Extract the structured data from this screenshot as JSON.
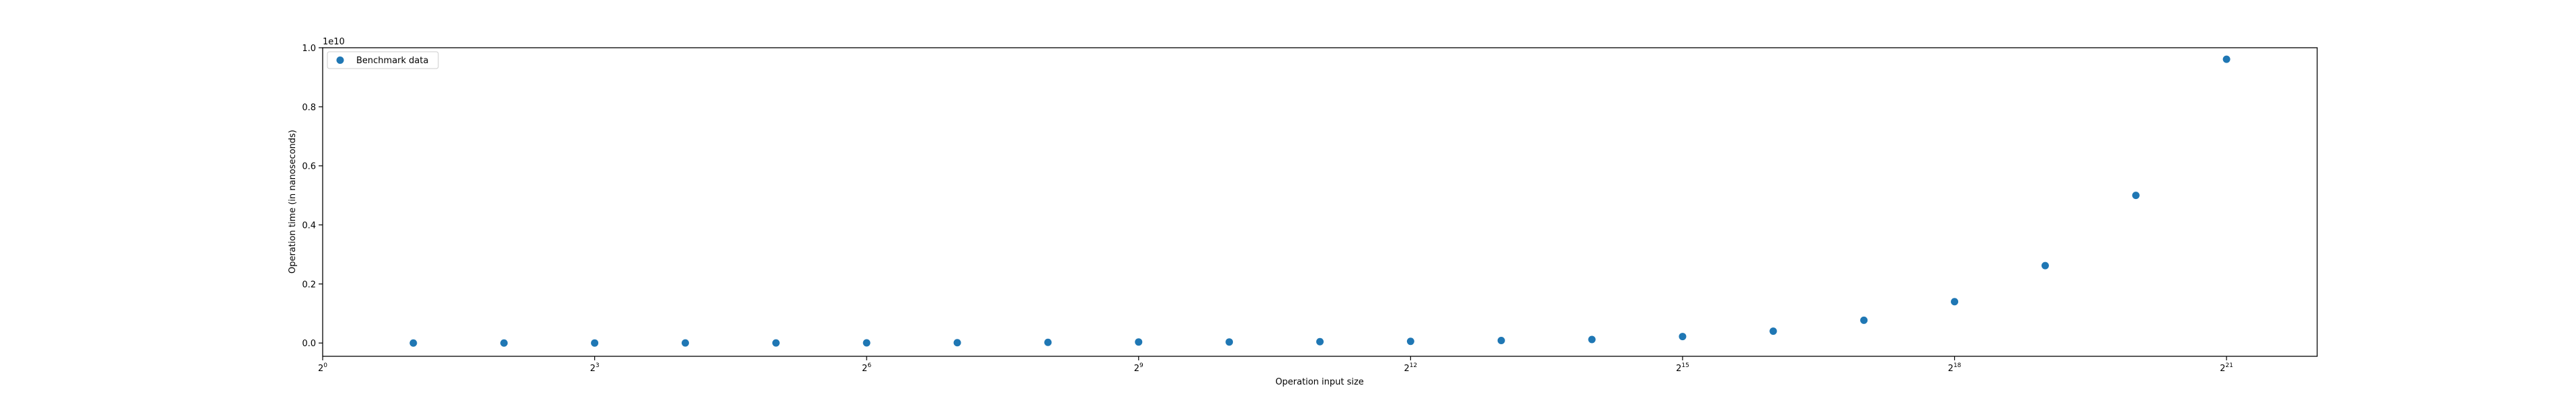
{
  "chart_data": {
    "type": "scatter",
    "xlabel": "Operation input size",
    "ylabel": "Operation time (in nanoseconds)",
    "x_scale": "log2",
    "xlim": [
      1,
      4194304
    ],
    "ylim": [
      -0.045,
      1.0
    ],
    "y_multiplier": "1e10",
    "x_ticks": [
      {
        "value": 1,
        "base": "2",
        "exp": "0"
      },
      {
        "value": 8,
        "base": "2",
        "exp": "3"
      },
      {
        "value": 64,
        "base": "2",
        "exp": "6"
      },
      {
        "value": 512,
        "base": "2",
        "exp": "9"
      },
      {
        "value": 4096,
        "base": "2",
        "exp": "12"
      },
      {
        "value": 32768,
        "base": "2",
        "exp": "15"
      },
      {
        "value": 262144,
        "base": "2",
        "exp": "18"
      },
      {
        "value": 2097152,
        "base": "2",
        "exp": "21"
      }
    ],
    "y_ticks": [
      {
        "value": 0.0,
        "label": "0.0"
      },
      {
        "value": 0.2,
        "label": "0.2"
      },
      {
        "value": 0.4,
        "label": "0.4"
      },
      {
        "value": 0.6,
        "label": "0.6"
      },
      {
        "value": 0.8,
        "label": "0.8"
      },
      {
        "value": 1.0,
        "label": "1.0"
      }
    ],
    "grid": false,
    "legend_position": "top-left",
    "series": [
      {
        "name": "Benchmark data",
        "color": "#1f77b4",
        "x": [
          2,
          4,
          8,
          16,
          32,
          64,
          128,
          256,
          512,
          1024,
          2048,
          4096,
          8192,
          16384,
          32768,
          65536,
          131072,
          262144,
          524288,
          1048576,
          2097152
        ],
        "y": [
          2e-05,
          4e-05,
          8e-05,
          0.00015,
          0.0003,
          0.0006,
          0.0011,
          0.0022,
          0.0035,
          0.0035,
          0.0045,
          0.0057,
          0.0085,
          0.012,
          0.022,
          0.04,
          0.077,
          0.14,
          0.262,
          0.5,
          0.961
        ]
      }
    ]
  }
}
